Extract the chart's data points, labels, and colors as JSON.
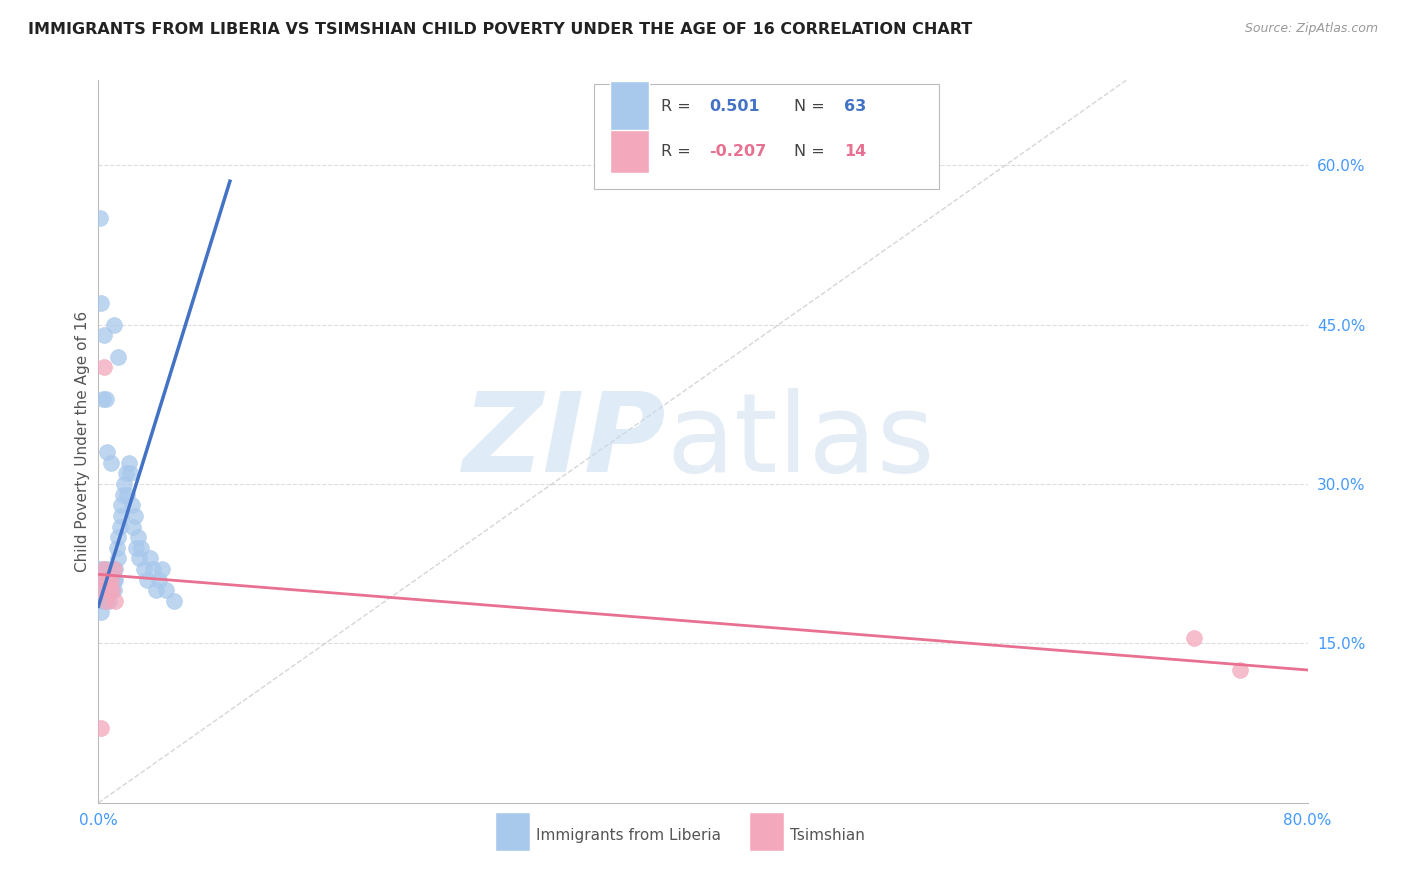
{
  "title": "IMMIGRANTS FROM LIBERIA VS TSIMSHIAN CHILD POVERTY UNDER THE AGE OF 16 CORRELATION CHART",
  "source": "Source: ZipAtlas.com",
  "ylabel": "Child Poverty Under the Age of 16",
  "xlim": [
    0.0,
    0.8
  ],
  "ylim": [
    0.0,
    0.68
  ],
  "xticks": [
    0.0,
    0.1,
    0.2,
    0.3,
    0.4,
    0.5,
    0.6,
    0.7,
    0.8
  ],
  "xticklabels": [
    "0.0%",
    "",
    "",
    "",
    "",
    "",
    "",
    "",
    "80.0%"
  ],
  "yticks_right": [
    0.15,
    0.3,
    0.45,
    0.6
  ],
  "yticklabels_right": [
    "15.0%",
    "30.0%",
    "45.0%",
    "60.0%"
  ],
  "blue_color": "#A8C8EC",
  "pink_color": "#F4A8BC",
  "blue_line_color": "#4472C4",
  "pink_line_color": "#E87090",
  "grid_color": "#DDDDDD",
  "blue_scatter_x": [
    0.001,
    0.001,
    0.001,
    0.002,
    0.002,
    0.002,
    0.003,
    0.003,
    0.003,
    0.004,
    0.004,
    0.005,
    0.005,
    0.005,
    0.006,
    0.006,
    0.007,
    0.007,
    0.008,
    0.008,
    0.009,
    0.009,
    0.01,
    0.01,
    0.011,
    0.011,
    0.012,
    0.013,
    0.013,
    0.014,
    0.015,
    0.015,
    0.016,
    0.017,
    0.018,
    0.019,
    0.02,
    0.021,
    0.022,
    0.023,
    0.024,
    0.025,
    0.026,
    0.027,
    0.028,
    0.03,
    0.032,
    0.034,
    0.036,
    0.038,
    0.04,
    0.042,
    0.045,
    0.05,
    0.001,
    0.002,
    0.003,
    0.004,
    0.005,
    0.006,
    0.008,
    0.01,
    0.013
  ],
  "blue_scatter_y": [
    0.22,
    0.21,
    0.2,
    0.19,
    0.2,
    0.18,
    0.2,
    0.19,
    0.21,
    0.2,
    0.22,
    0.21,
    0.2,
    0.19,
    0.22,
    0.21,
    0.2,
    0.19,
    0.21,
    0.2,
    0.22,
    0.2,
    0.21,
    0.2,
    0.22,
    0.21,
    0.24,
    0.25,
    0.23,
    0.26,
    0.27,
    0.28,
    0.29,
    0.3,
    0.31,
    0.29,
    0.32,
    0.31,
    0.28,
    0.26,
    0.27,
    0.24,
    0.25,
    0.23,
    0.24,
    0.22,
    0.21,
    0.23,
    0.22,
    0.2,
    0.21,
    0.22,
    0.2,
    0.19,
    0.55,
    0.47,
    0.38,
    0.44,
    0.38,
    0.33,
    0.32,
    0.45,
    0.42
  ],
  "pink_scatter_x": [
    0.001,
    0.002,
    0.003,
    0.004,
    0.004,
    0.005,
    0.006,
    0.007,
    0.008,
    0.009,
    0.01,
    0.011,
    0.725,
    0.755
  ],
  "pink_scatter_y": [
    0.2,
    0.07,
    0.21,
    0.22,
    0.41,
    0.19,
    0.21,
    0.2,
    0.21,
    0.2,
    0.22,
    0.19,
    0.155,
    0.125
  ],
  "blue_line_x": [
    0.0,
    0.087
  ],
  "blue_line_y": [
    0.185,
    0.585
  ],
  "pink_line_x": [
    0.0,
    0.8
  ],
  "pink_line_y": [
    0.215,
    0.125
  ],
  "diag_line_x": [
    0.0,
    0.68
  ],
  "diag_line_y": [
    0.0,
    0.68
  ]
}
